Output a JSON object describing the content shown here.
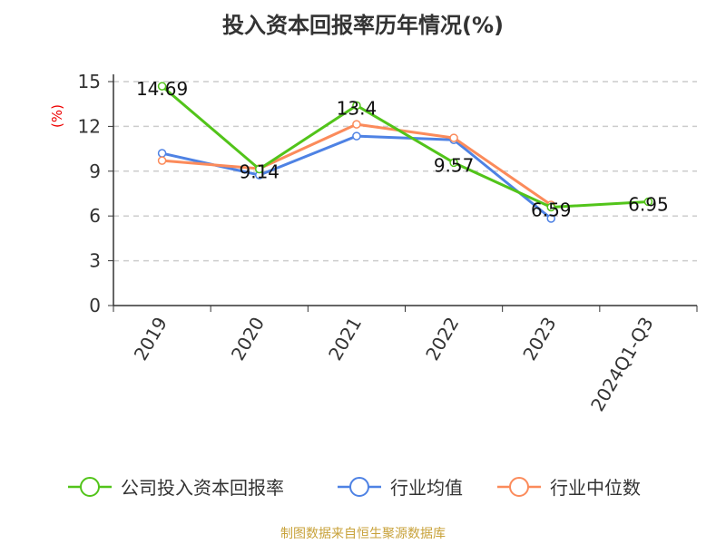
{
  "chart_data": {
    "type": "line",
    "title": "投入资本回报率历年情况(%)",
    "ylabel": "(%)",
    "categories": [
      "2019",
      "2020",
      "2021",
      "2022",
      "2023",
      "2024Q1-Q3"
    ],
    "ylim": [
      0,
      15
    ],
    "yticks": [
      0,
      3,
      6,
      9,
      12,
      15
    ],
    "grid": true,
    "legend_position": "bottom",
    "series": [
      {
        "name": "公司投入资本回报率",
        "color": "#52c41a",
        "values": [
          14.69,
          9.14,
          13.4,
          9.57,
          6.59,
          6.95
        ],
        "labels": [
          "14.69",
          "9.14",
          "13.4",
          "9.57",
          "6.59",
          "6.95"
        ]
      },
      {
        "name": "行业均值",
        "color": "#4e82e4",
        "values": [
          10.2,
          8.74,
          11.35,
          11.1,
          5.83,
          null
        ]
      },
      {
        "name": "行业中位数",
        "color": "#fb8b5b",
        "values": [
          9.71,
          9.17,
          12.14,
          11.23,
          6.74,
          null
        ]
      }
    ]
  },
  "source": "制图数据来自恒生聚源数据库"
}
